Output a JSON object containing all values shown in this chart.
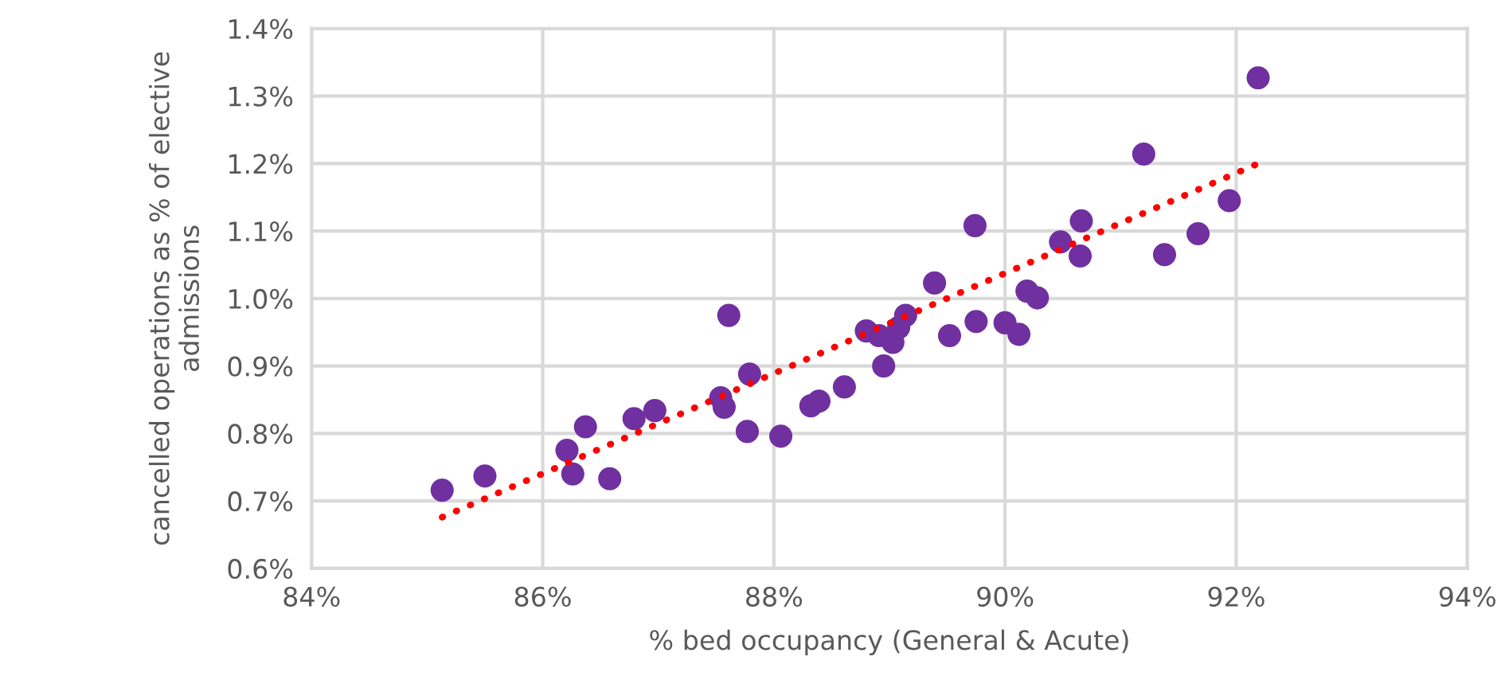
{
  "chart_data": {
    "type": "scatter",
    "xlabel": "% bed occupancy (General & Acute)",
    "ylabel": "cancelled operations as % of elective\nadmissions",
    "xlim": [
      84,
      94
    ],
    "xticks": [
      {
        "value": 84,
        "label": "84%"
      },
      {
        "value": 86,
        "label": "86%"
      },
      {
        "value": 88,
        "label": "88%"
      },
      {
        "value": 90,
        "label": "90%"
      },
      {
        "value": 92,
        "label": "92%"
      },
      {
        "value": 94,
        "label": "94%"
      }
    ],
    "ylim": [
      0.6,
      1.4
    ],
    "yticks": [
      {
        "value": 0.6,
        "label": "0.6%"
      },
      {
        "value": 0.7,
        "label": "0.7%"
      },
      {
        "value": 0.8,
        "label": "0.8%"
      },
      {
        "value": 0.9,
        "label": "0.9%"
      },
      {
        "value": 1.0,
        "label": "1.0%"
      },
      {
        "value": 1.1,
        "label": "1.1%"
      },
      {
        "value": 1.2,
        "label": "1.2%"
      },
      {
        "value": 1.3,
        "label": "1.3%"
      },
      {
        "value": 1.4,
        "label": "1.4%"
      }
    ],
    "grid": true,
    "legend": false,
    "series": [
      {
        "color": "#7030a0",
        "marker": "circle",
        "x": [
          85.13,
          85.5,
          86.21,
          86.26,
          86.37,
          86.58,
          86.79,
          86.97,
          87.54,
          87.57,
          87.61,
          87.77,
          87.79,
          88.06,
          88.32,
          88.39,
          88.61,
          88.8,
          88.91,
          88.95,
          89.03,
          89.08,
          89.14,
          89.39,
          89.52,
          89.74,
          89.75,
          90.0,
          90.12,
          90.19,
          90.28,
          90.48,
          90.66,
          90.65,
          91.2,
          91.38,
          91.67,
          91.94,
          92.19
        ],
        "values": [
          0.716,
          0.737,
          0.775,
          0.74,
          0.81,
          0.733,
          0.822,
          0.834,
          0.853,
          0.839,
          0.975,
          0.803,
          0.888,
          0.796,
          0.841,
          0.848,
          0.869,
          0.952,
          0.945,
          0.9,
          0.935,
          0.957,
          0.975,
          1.023,
          0.945,
          1.108,
          0.966,
          0.964,
          0.947,
          1.011,
          1.001,
          1.084,
          1.115,
          1.063,
          1.214,
          1.065,
          1.096,
          1.145,
          1.327
        ]
      },
      {
        "type": "line",
        "color": "#ff0000",
        "line_style": "dotted",
        "marker": "none",
        "x": [
          85.13,
          92.19
        ],
        "values": [
          0.676,
          1.2
        ]
      }
    ]
  }
}
